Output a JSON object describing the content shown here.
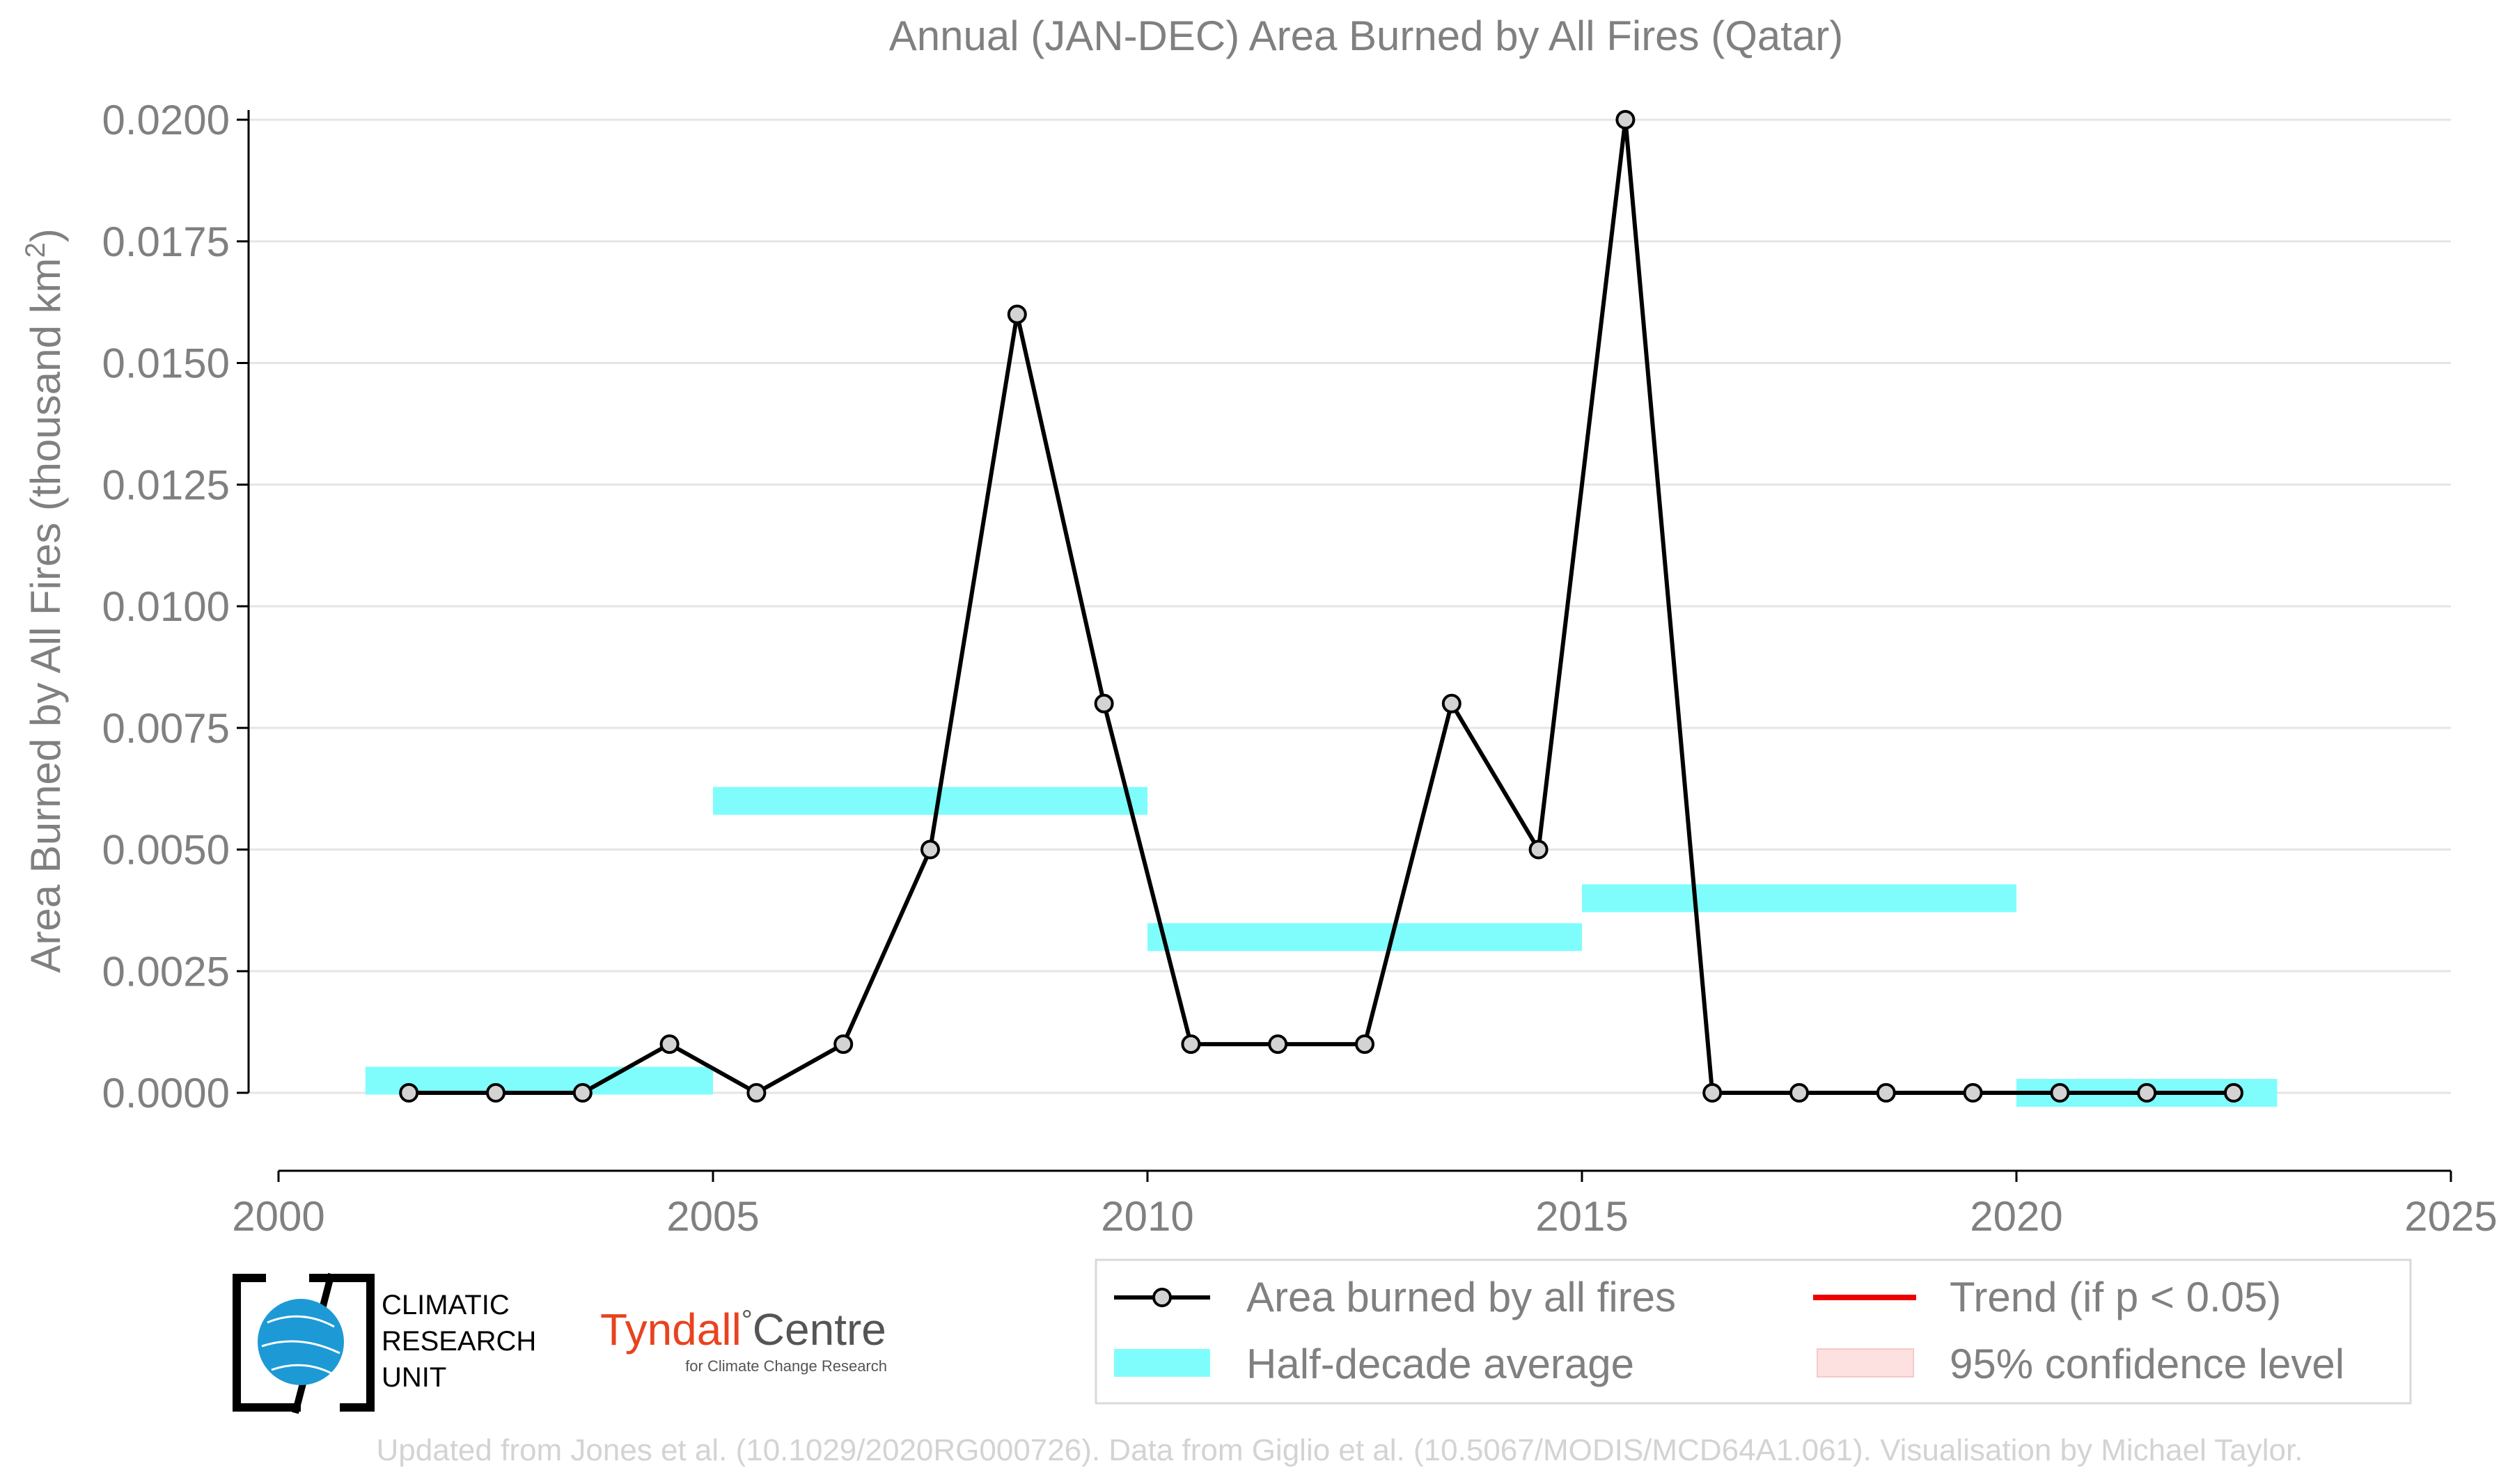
{
  "chart_data": {
    "type": "line",
    "title": "Annual (JAN-DEC) Area Burned by All Fires (Qatar)",
    "ylabel_main": "Area Burned by All Fires (thousand km",
    "ylabel_sup": "2",
    "ylabel_end": ")",
    "xlabel": "",
    "xlim": [
      2000,
      2025
    ],
    "ylim": [
      -0.002,
      0.0202
    ],
    "x_ticks": [
      2000,
      2005,
      2010,
      2015,
      2020,
      2025
    ],
    "x_tick_labels": [
      "2000",
      "2005",
      "2010",
      "2015",
      "2020",
      "2025"
    ],
    "y_ticks": [
      0,
      0.0025,
      0.005,
      0.0075,
      0.01,
      0.0125,
      0.015,
      0.0175,
      0.02
    ],
    "y_tick_labels": [
      "0.0000",
      "0.0025",
      "0.0050",
      "0.0075",
      "0.0100",
      "0.0125",
      "0.0150",
      "0.0175",
      "0.0200"
    ],
    "grid": true,
    "series": [
      {
        "name": "Area burned by all fires",
        "color": "#000000",
        "marker_fill": "#d3d3d3",
        "x": [
          2001.5,
          2002.5,
          2003.5,
          2004.5,
          2005.5,
          2006.5,
          2007.5,
          2008.5,
          2009.5,
          2010.5,
          2011.5,
          2012.5,
          2013.5,
          2014.5,
          2015.5,
          2016.5,
          2017.5,
          2018.5,
          2019.5,
          2020.5,
          2021.5,
          2022.5
        ],
        "values": [
          0,
          0,
          0,
          0.001,
          0,
          0.001,
          0.005,
          0.016,
          0.008,
          0.001,
          0.001,
          0.001,
          0.008,
          0.005,
          0.02,
          0,
          0,
          0,
          0,
          0,
          0,
          0
        ]
      }
    ],
    "half_decade_averages": {
      "name": "Half-decade average",
      "color": "#7ffdfd",
      "segments": [
        {
          "x_start": 2001,
          "x_end": 2005,
          "value": 0.00025
        },
        {
          "x_start": 2005,
          "x_end": 2010,
          "value": 0.006
        },
        {
          "x_start": 2010,
          "x_end": 2015,
          "value": 0.0032
        },
        {
          "x_start": 2015,
          "x_end": 2020,
          "value": 0.004
        },
        {
          "x_start": 2020,
          "x_end": 2023,
          "value": 0.0
        }
      ]
    },
    "legend": {
      "placement": "bottom-right",
      "items": [
        {
          "label": "Area burned by all fires",
          "kind": "line-marker",
          "color": "#000000"
        },
        {
          "label": "Trend (if p < 0.05)",
          "kind": "line",
          "color": "#ee0000"
        },
        {
          "label": "Half-decade average",
          "kind": "band",
          "color": "#7ffdfd"
        },
        {
          "label": "95% confidence level",
          "kind": "band",
          "color": "#fde0e0"
        }
      ]
    }
  },
  "logos": {
    "cru_line1": "CLIMATIC",
    "cru_line2": "RESEARCH",
    "cru_line3": "UNIT",
    "tyndall_name": "Tyndall",
    "tyndall_degree": "°",
    "tyndall_centre": "Centre",
    "tyndall_sub": "for Climate Change Research"
  },
  "footer": "Updated from Jones et al. (10.1029/2020RG000726). Data from Giglio et al. (10.5067/MODIS/MCD64A1.061). Visualisation by Michael Taylor."
}
